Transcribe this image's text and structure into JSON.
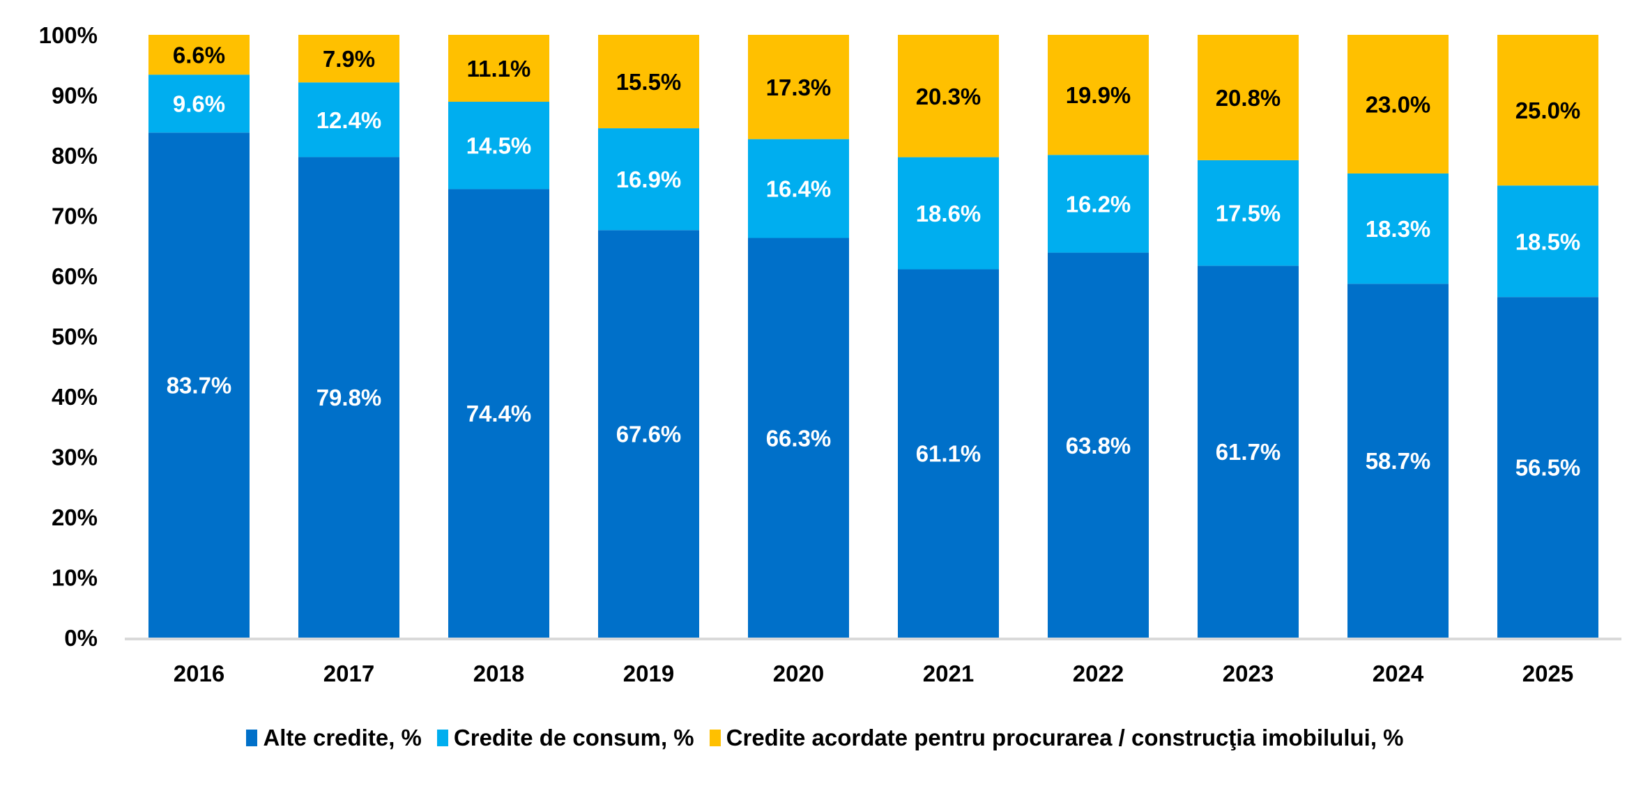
{
  "chart_data": {
    "type": "bar",
    "stacked": true,
    "normalized": true,
    "title": "",
    "xlabel": "",
    "ylabel": "",
    "ylim": [
      0,
      100
    ],
    "yticks": [
      "0%",
      "10%",
      "20%",
      "30%",
      "40%",
      "50%",
      "60%",
      "70%",
      "80%",
      "90%",
      "100%"
    ],
    "categories": [
      "2016",
      "2017",
      "2018",
      "2019",
      "2020",
      "2021",
      "2022",
      "2023",
      "2024",
      "2025"
    ],
    "series": [
      {
        "name": "Alte credite, %",
        "color": "#0070C9",
        "label_color": "#FFFFFF",
        "values": [
          83.7,
          79.8,
          74.4,
          67.6,
          66.3,
          61.1,
          63.8,
          61.7,
          58.7,
          56.5
        ]
      },
      {
        "name": "Credite de consum, %",
        "color": "#00AEEF",
        "label_color": "#FFFFFF",
        "values": [
          9.6,
          12.4,
          14.5,
          16.9,
          16.4,
          18.6,
          16.2,
          17.5,
          18.3,
          18.5
        ]
      },
      {
        "name": "Credite acordate pentru procurarea / construcţia imobilului, %",
        "color": "#FFC000",
        "label_color": "#000000",
        "values": [
          6.6,
          7.9,
          11.1,
          15.5,
          17.3,
          20.3,
          19.9,
          20.8,
          23.0,
          25.0
        ]
      }
    ],
    "legend_position": "bottom",
    "grid": false
  }
}
